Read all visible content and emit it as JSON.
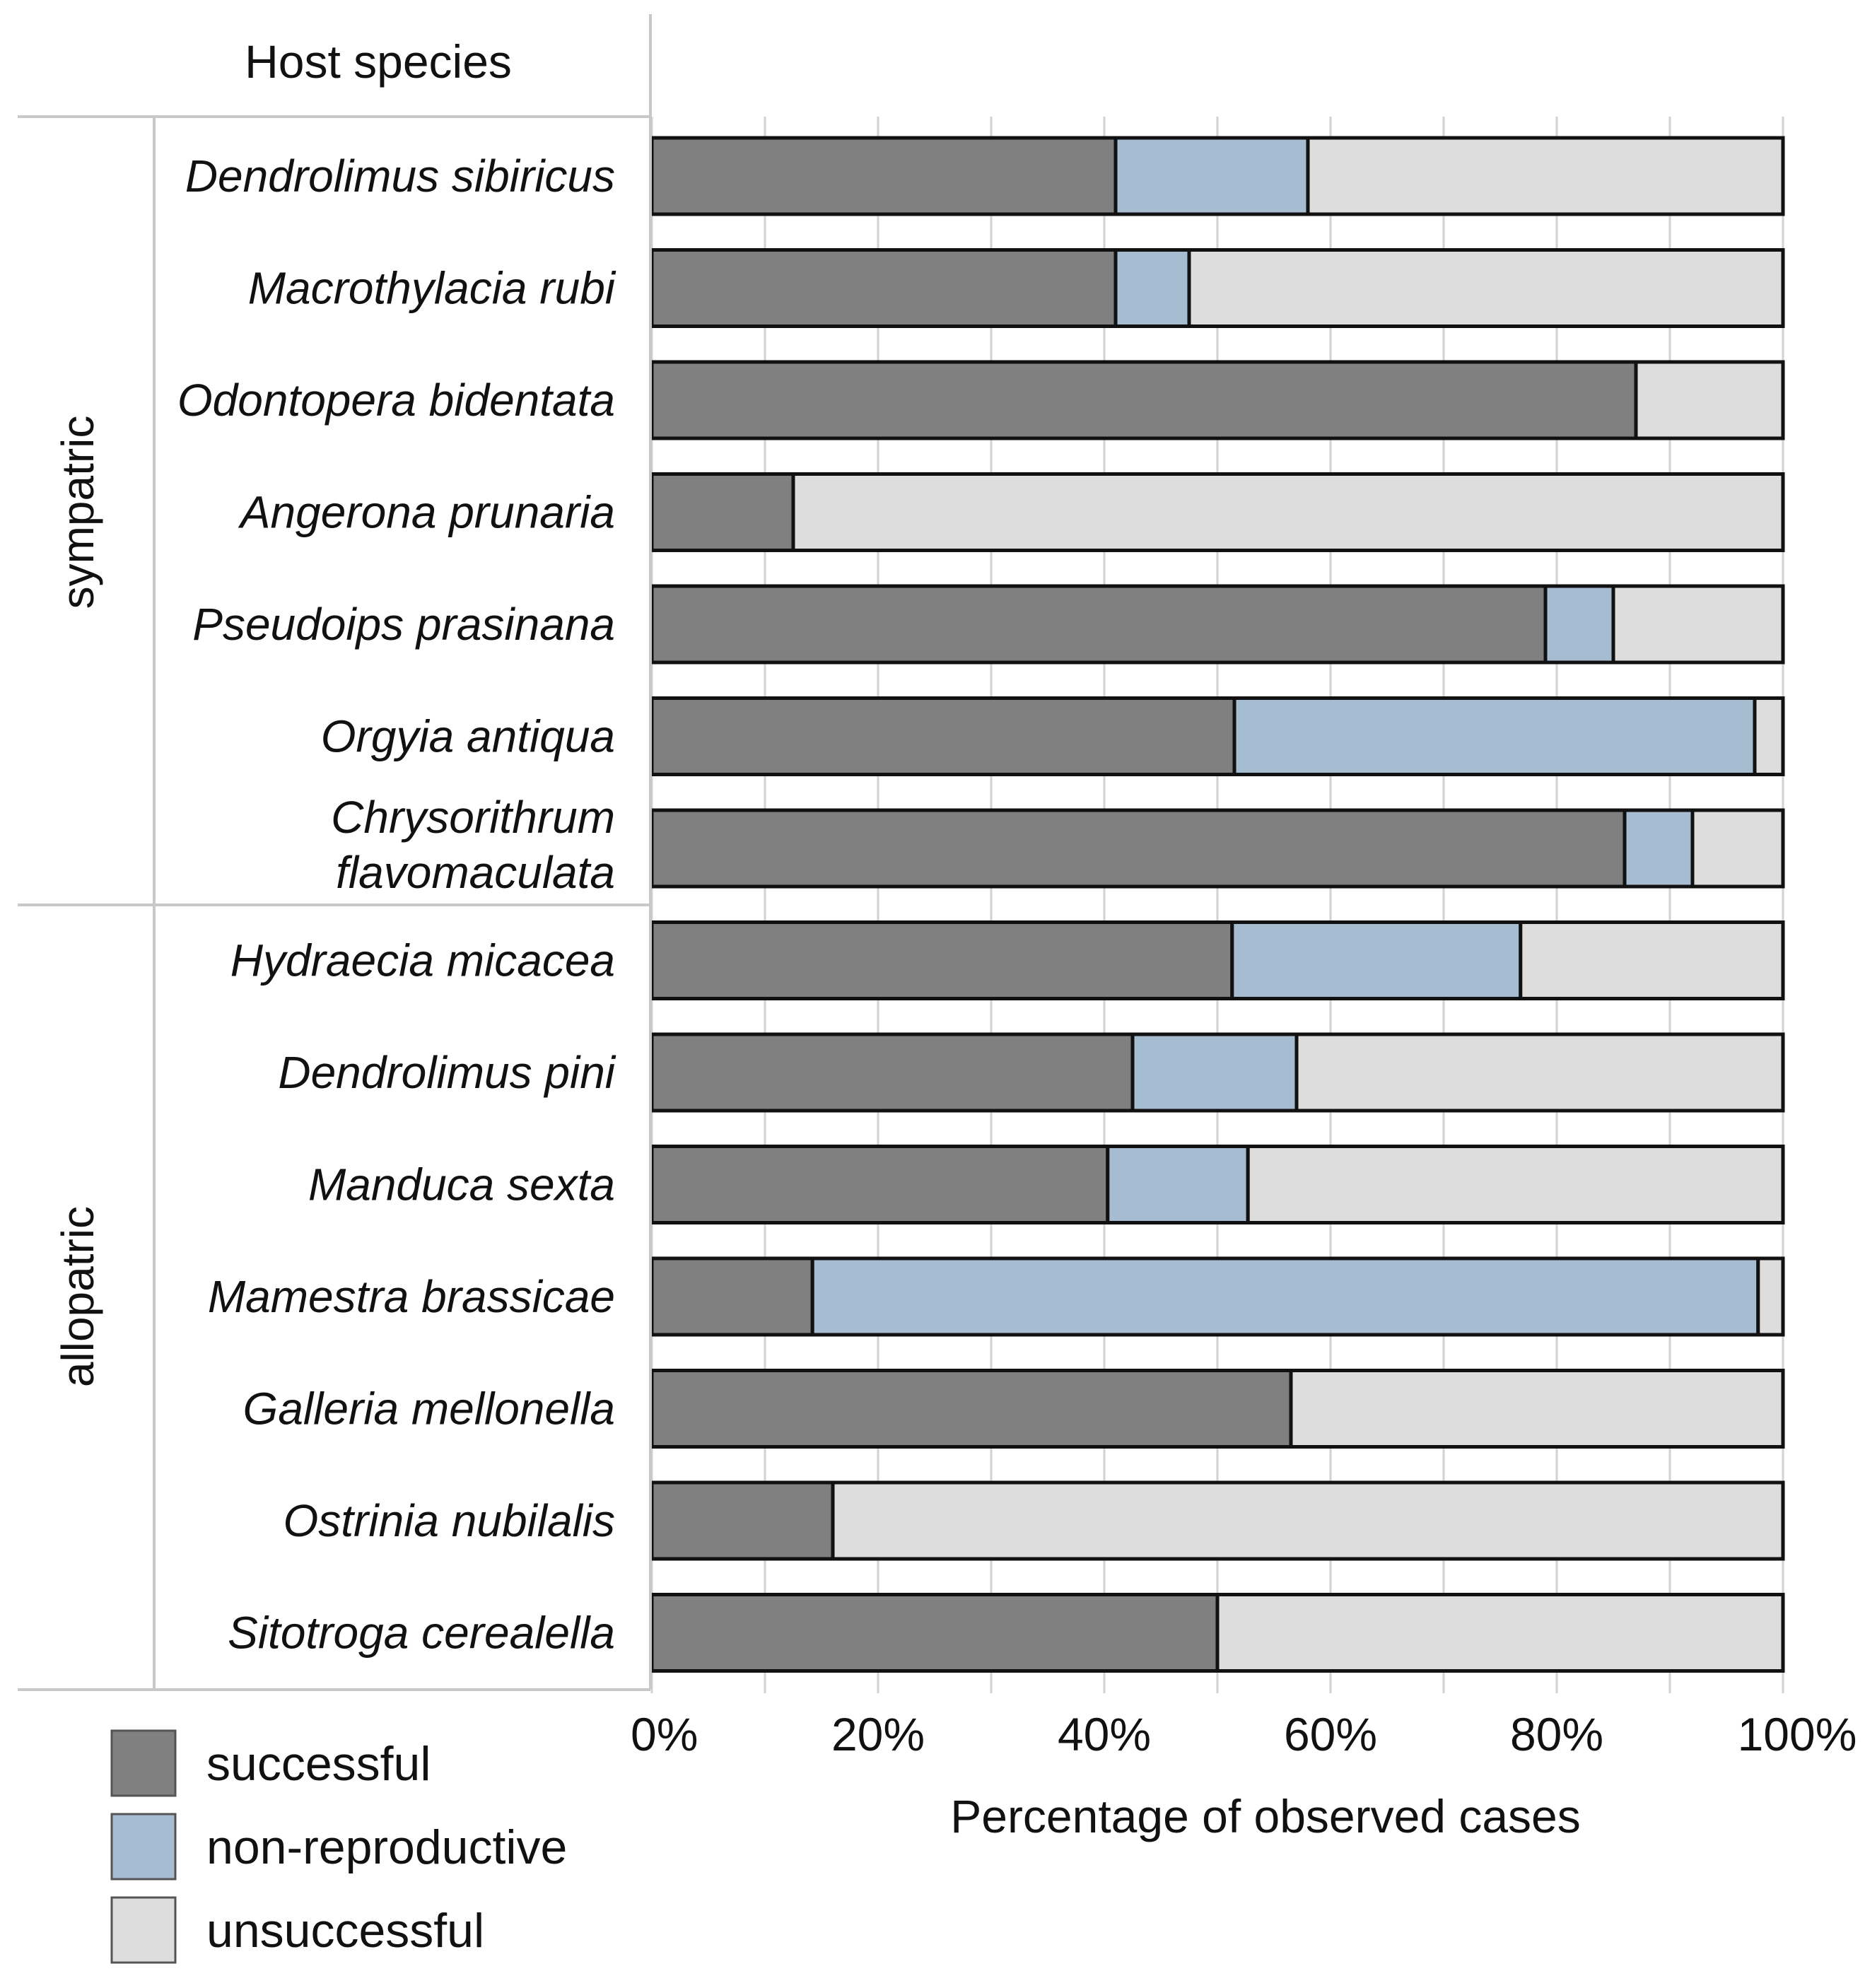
{
  "header": {
    "label": "Host species"
  },
  "chart_data": {
    "type": "bar",
    "orientation": "horizontal",
    "stacked": true,
    "xlabel": "Percentage of observed cases",
    "xlim": [
      0,
      100
    ],
    "xticks": [
      "0%",
      "20%",
      "40%",
      "60%",
      "80%",
      "100%"
    ],
    "grid": true,
    "legend_position": "bottom-left",
    "groups": [
      {
        "label": "sympatric",
        "start": 0,
        "end": 6
      },
      {
        "label": "allopatric",
        "start": 7,
        "end": 13
      }
    ],
    "categories": [
      [
        "Dendrolimus sibiricus"
      ],
      [
        "Macrothylacia rubi"
      ],
      [
        "Odontopera bidentata"
      ],
      [
        "Angerona prunaria"
      ],
      [
        "Pseudoips prasinana"
      ],
      [
        "Orgyia antiqua"
      ],
      [
        "Chrysorithrum",
        "flavomaculata"
      ],
      [
        "Hydraecia micacea"
      ],
      [
        "Dendrolimus pini"
      ],
      [
        "Manduca sexta"
      ],
      [
        "Mamestra brassicae"
      ],
      [
        "Galleria mellonella"
      ],
      [
        "Ostrinia nubilalis"
      ],
      [
        "Sitotroga cerealella"
      ]
    ],
    "series": [
      {
        "name": "successful",
        "color": "#808080",
        "values": [
          41,
          41,
          87,
          12.5,
          79,
          51.5,
          86,
          51.3,
          42.5,
          40.3,
          14.2,
          56.5,
          16,
          50
        ]
      },
      {
        "name": "non-reproductive",
        "color": "#a5bcd1",
        "values": [
          17,
          6.5,
          0,
          0,
          6,
          46,
          6,
          25.5,
          14.5,
          12.4,
          83.6,
          0,
          0,
          0
        ]
      },
      {
        "name": "unsuccessful",
        "color": "#dddddd",
        "values": [
          42,
          52.5,
          13,
          87.5,
          15,
          2.5,
          8,
          23.2,
          43,
          47.3,
          2.2,
          43.5,
          84,
          50
        ]
      }
    ]
  }
}
